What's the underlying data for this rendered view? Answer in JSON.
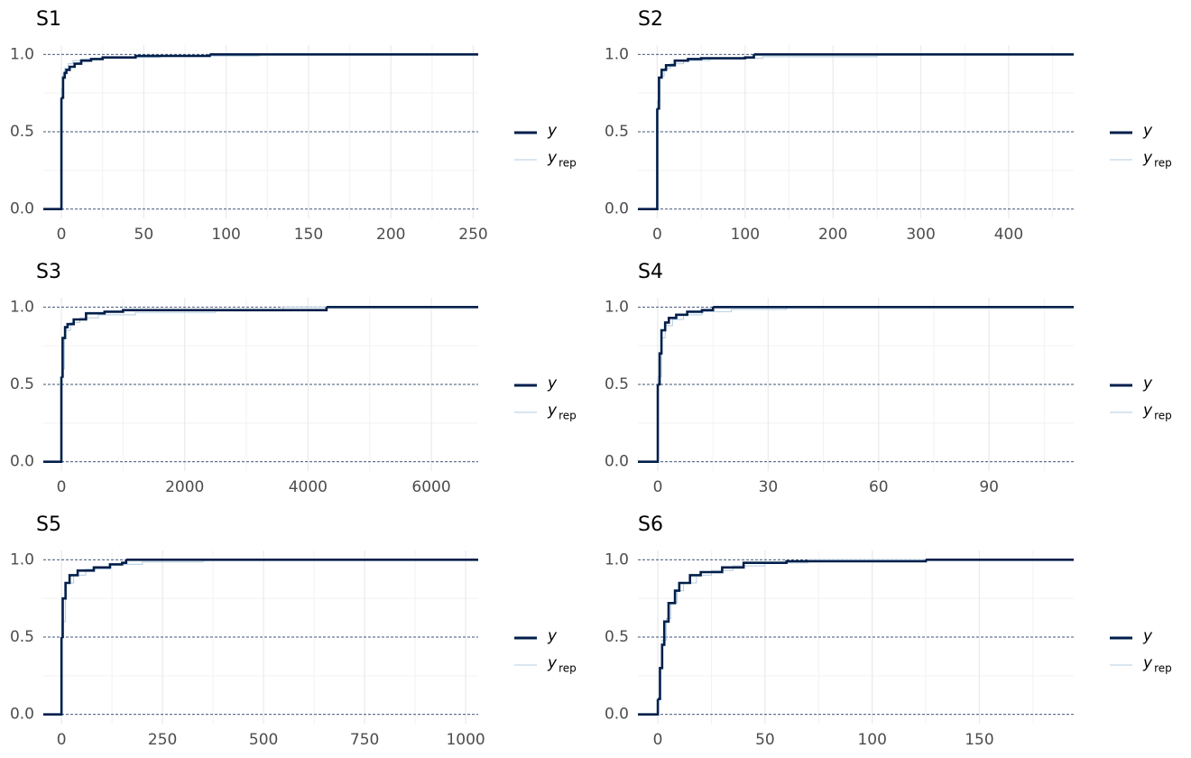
{
  "chart_data": [
    {
      "type": "line",
      "step": true,
      "title": "S1",
      "xlim": [
        -11,
        253
      ],
      "xticks": [
        0,
        50,
        100,
        150,
        200,
        250
      ],
      "ylim": [
        -0.06,
        1.06
      ],
      "yticks": [
        {
          "value": 0,
          "label": "0.0"
        },
        {
          "value": 0.5,
          "label": "0.5"
        },
        {
          "value": 1,
          "label": "1.0"
        }
      ],
      "grid": true,
      "series": [
        {
          "name": "y",
          "color": "#011f4b",
          "x": [
            0,
            1,
            2,
            3,
            5,
            8,
            12,
            18,
            25,
            45,
            90
          ],
          "values": [
            0.72,
            0.85,
            0.88,
            0.9,
            0.92,
            0.94,
            0.96,
            0.97,
            0.98,
            0.99,
            1
          ]
        },
        {
          "name": "y",
          "subscript": "rep",
          "color": "#b3cde0",
          "x": [
            0,
            1,
            2,
            4,
            7,
            12,
            20,
            35,
            60,
            120
          ],
          "values": [
            0.78,
            0.88,
            0.91,
            0.94,
            0.96,
            0.97,
            0.975,
            0.98,
            0.99,
            1
          ]
        }
      ]
    },
    {
      "type": "line",
      "step": true,
      "title": "S2",
      "xlim": [
        -22,
        474
      ],
      "xticks": [
        0,
        100,
        200,
        300,
        400
      ],
      "ylim": [
        -0.06,
        1.06
      ],
      "yticks": [
        {
          "value": 0,
          "label": "0.0"
        },
        {
          "value": 0.5,
          "label": "0.5"
        },
        {
          "value": 1,
          "label": "1.0"
        }
      ],
      "grid": true,
      "series": [
        {
          "name": "y",
          "color": "#011f4b",
          "x": [
            0,
            2,
            5,
            10,
            20,
            35,
            50,
            100,
            110
          ],
          "values": [
            0.65,
            0.85,
            0.9,
            0.93,
            0.96,
            0.97,
            0.975,
            0.98,
            1
          ]
        },
        {
          "name": "y",
          "subscript": "rep",
          "color": "#b3cde0",
          "x": [
            0,
            3,
            8,
            15,
            30,
            60,
            120,
            250
          ],
          "values": [
            0.7,
            0.86,
            0.91,
            0.94,
            0.96,
            0.975,
            0.985,
            1
          ]
        }
      ]
    },
    {
      "type": "line",
      "step": true,
      "title": "S3",
      "xlim": [
        -293,
        6760
      ],
      "xticks": [
        0,
        2000,
        4000,
        6000
      ],
      "ylim": [
        -0.06,
        1.06
      ],
      "yticks": [
        {
          "value": 0,
          "label": "0.0"
        },
        {
          "value": 0.5,
          "label": "0.5"
        },
        {
          "value": 1,
          "label": "1.0"
        }
      ],
      "grid": true,
      "series": [
        {
          "name": "y",
          "color": "#011f4b",
          "x": [
            0,
            20,
            60,
            100,
            200,
            400,
            700,
            1000,
            4300
          ],
          "values": [
            0.55,
            0.8,
            0.87,
            0.89,
            0.92,
            0.96,
            0.97,
            0.98,
            1
          ]
        },
        {
          "name": "y",
          "subscript": "rep",
          "color": "#b3cde0",
          "x": [
            0,
            50,
            150,
            300,
            600,
            1200,
            2500,
            3600
          ],
          "values": [
            0.6,
            0.85,
            0.9,
            0.93,
            0.95,
            0.965,
            0.975,
            1
          ]
        }
      ]
    },
    {
      "type": "line",
      "step": true,
      "title": "S4",
      "xlim": [
        -5.4,
        113
      ],
      "xticks": [
        0,
        30,
        60,
        90
      ],
      "ylim": [
        -0.06,
        1.06
      ],
      "yticks": [
        {
          "value": 0,
          "label": "0.0"
        },
        {
          "value": 0.5,
          "label": "0.5"
        },
        {
          "value": 1,
          "label": "1.0"
        }
      ],
      "grid": true,
      "series": [
        {
          "name": "y",
          "color": "#011f4b",
          "x": [
            0,
            0.5,
            1,
            2,
            3,
            5,
            8,
            12,
            15
          ],
          "values": [
            0.5,
            0.7,
            0.85,
            0.9,
            0.93,
            0.95,
            0.97,
            0.98,
            1
          ]
        },
        {
          "name": "y",
          "subscript": "rep",
          "color": "#b3cde0",
          "x": [
            0,
            1,
            2,
            4,
            7,
            12,
            20,
            35
          ],
          "values": [
            0.55,
            0.8,
            0.88,
            0.92,
            0.95,
            0.97,
            0.985,
            1
          ]
        }
      ]
    },
    {
      "type": "line",
      "step": true,
      "title": "S5",
      "xlim": [
        -45,
        1031
      ],
      "xticks": [
        0,
        250,
        500,
        750,
        1000
      ],
      "ylim": [
        -0.06,
        1.06
      ],
      "yticks": [
        {
          "value": 0,
          "label": "0.0"
        },
        {
          "value": 0.5,
          "label": "0.5"
        },
        {
          "value": 1,
          "label": "1.0"
        }
      ],
      "grid": true,
      "series": [
        {
          "name": "y",
          "color": "#011f4b",
          "x": [
            0,
            3,
            10,
            20,
            40,
            80,
            120,
            150,
            160
          ],
          "values": [
            0.5,
            0.75,
            0.85,
            0.9,
            0.93,
            0.95,
            0.97,
            0.98,
            1
          ]
        },
        {
          "name": "y",
          "subscript": "rep",
          "color": "#b3cde0",
          "x": [
            0,
            10,
            30,
            60,
            120,
            200,
            350
          ],
          "values": [
            0.6,
            0.85,
            0.9,
            0.94,
            0.97,
            0.985,
            1
          ]
        }
      ]
    },
    {
      "type": "line",
      "step": true,
      "title": "S6",
      "xlim": [
        -9.3,
        194
      ],
      "xticks": [
        0,
        50,
        100,
        150
      ],
      "ylim": [
        -0.06,
        1.06
      ],
      "yticks": [
        {
          "value": 0,
          "label": "0.0"
        },
        {
          "value": 0.5,
          "label": "0.5"
        },
        {
          "value": 1,
          "label": "1.0"
        }
      ],
      "grid": true,
      "series": [
        {
          "name": "y",
          "color": "#011f4b",
          "x": [
            0,
            1,
            2,
            3,
            5,
            8,
            10,
            15,
            20,
            30,
            40,
            60,
            125
          ],
          "values": [
            0.1,
            0.3,
            0.45,
            0.6,
            0.72,
            0.8,
            0.85,
            0.9,
            0.92,
            0.95,
            0.98,
            0.99,
            1
          ]
        },
        {
          "name": "y",
          "subscript": "rep",
          "color": "#b3cde0",
          "x": [
            0,
            1,
            2,
            4,
            6,
            9,
            12,
            18,
            25,
            35,
            50,
            70
          ],
          "values": [
            0.1,
            0.3,
            0.48,
            0.62,
            0.72,
            0.8,
            0.85,
            0.9,
            0.93,
            0.96,
            0.98,
            1
          ]
        }
      ]
    }
  ]
}
